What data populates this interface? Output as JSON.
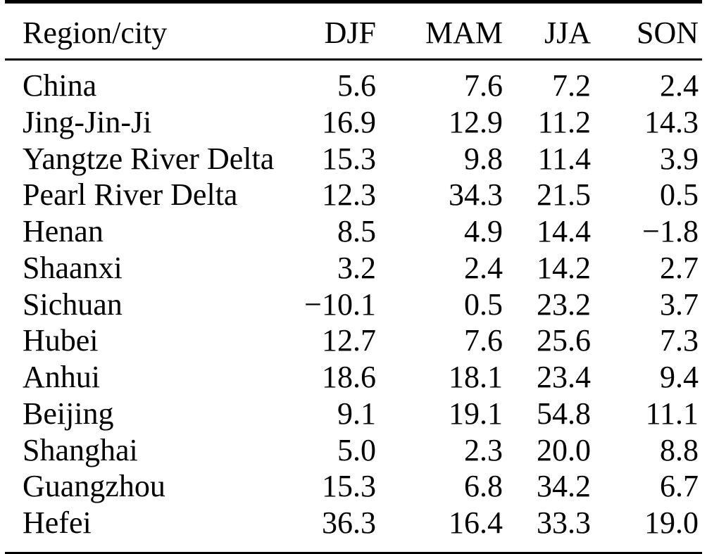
{
  "page": {
    "background_color": "#ffffff",
    "text_color": "#000000",
    "rule_color": "#000000"
  },
  "chart_data": {
    "type": "table",
    "columns": [
      "Region/city",
      "DJF",
      "MAM",
      "JJA",
      "SON"
    ],
    "rows": [
      [
        "China",
        "5.6",
        "7.6",
        "7.2",
        "2.4"
      ],
      [
        "Jing-Jin-Ji",
        "16.9",
        "12.9",
        "11.2",
        "14.3"
      ],
      [
        "Yangtze River Delta",
        "15.3",
        "9.8",
        "11.4",
        "3.9"
      ],
      [
        "Pearl River Delta",
        "12.3",
        "34.3",
        "21.5",
        "0.5"
      ],
      [
        "Henan",
        "8.5",
        "4.9",
        "14.4",
        "−1.8"
      ],
      [
        "Shaanxi",
        "3.2",
        "2.4",
        "14.2",
        "2.7"
      ],
      [
        "Sichuan",
        "−10.1",
        "0.5",
        "23.2",
        "3.7"
      ],
      [
        "Hubei",
        "12.7",
        "7.6",
        "25.6",
        "7.3"
      ],
      [
        "Anhui",
        "18.6",
        "18.1",
        "23.4",
        "9.4"
      ],
      [
        "Beijing",
        "9.1",
        "19.1",
        "54.8",
        "11.1"
      ],
      [
        "Shanghai",
        "5.0",
        "2.3",
        "20.0",
        "8.8"
      ],
      [
        "Guangzhou",
        "15.3",
        "6.8",
        "34.2",
        "6.7"
      ],
      [
        "Hefei",
        "36.3",
        "16.4",
        "33.3",
        "19.0"
      ]
    ]
  }
}
